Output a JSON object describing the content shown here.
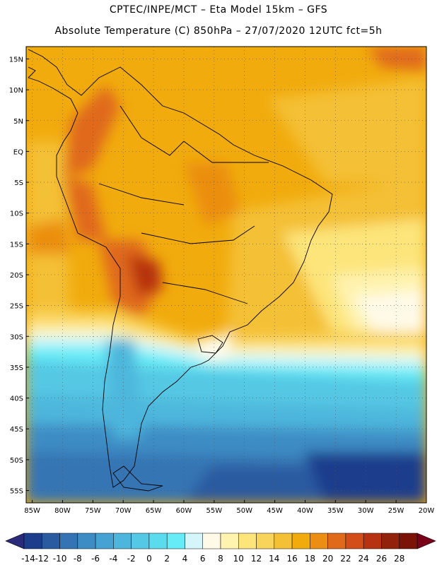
{
  "header": {
    "line1": "CPTEC/INPE/MCT –  Eta Model 15km – GFS",
    "line2": "Absolute Temperature (C) 850hPa – 27/07/2020 12UTC fct=5h"
  },
  "map": {
    "lon_range": [
      -86,
      -20
    ],
    "lat_range": [
      -57,
      17
    ],
    "lat_ticks": [
      "15N",
      "10N",
      "5N",
      "EQ",
      "5S",
      "10S",
      "15S",
      "20S",
      "25S",
      "30S",
      "35S",
      "40S",
      "45S",
      "50S",
      "55S"
    ],
    "lat_values": [
      15,
      10,
      5,
      0,
      -5,
      -10,
      -15,
      -20,
      -25,
      -30,
      -35,
      -40,
      -45,
      -50,
      -55
    ],
    "lon_ticks": [
      "85W",
      "80W",
      "75W",
      "70W",
      "65W",
      "60W",
      "55W",
      "50W",
      "45W",
      "40W",
      "35W",
      "30W",
      "25W",
      "20W"
    ],
    "lon_values": [
      -85,
      -80,
      -75,
      -70,
      -65,
      -60,
      -55,
      -50,
      -45,
      -40,
      -35,
      -30,
      -25,
      -20
    ]
  },
  "colorbar": {
    "labels": [
      "-14",
      "-12",
      "-10",
      "-8",
      "-6",
      "-4",
      "-2",
      "0",
      "2",
      "4",
      "6",
      "8",
      "10",
      "12",
      "14",
      "16",
      "18",
      "20",
      "22",
      "24",
      "26",
      "28"
    ],
    "colors": [
      "#1c3c8c",
      "#2a5aa0",
      "#3474b4",
      "#3e8cc4",
      "#46a2d2",
      "#4eb6dc",
      "#54c8e4",
      "#5adcee",
      "#66ecf6",
      "#d4f6fb",
      "#fffae8",
      "#fff3b0",
      "#fde57c",
      "#f9d45a",
      "#f4c036",
      "#f1ab0d",
      "#eb8e11",
      "#e0691a",
      "#d24d17",
      "#b73210",
      "#93220c",
      "#7a1208"
    ],
    "range_low": "#2a2a7a",
    "range_high": "#7a0019"
  }
}
